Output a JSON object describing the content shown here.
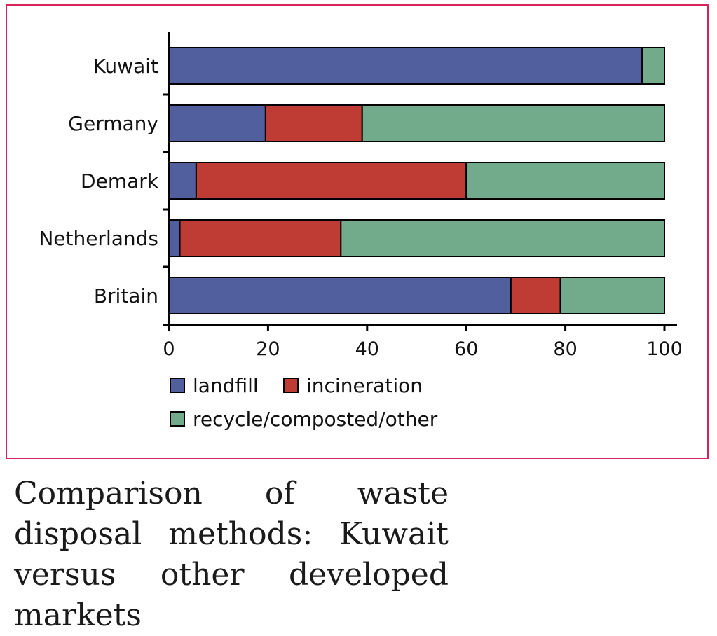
{
  "chart_data": {
    "type": "bar",
    "orientation": "horizontal",
    "stacked": true,
    "categories": [
      "Kuwait",
      "Germany",
      "Demark",
      "Netherlands",
      "Britain"
    ],
    "series": [
      {
        "name": "landfill",
        "color": "#525f9f",
        "values": [
          95.5,
          19.5,
          5.5,
          2.2,
          69
        ]
      },
      {
        "name": "incineration",
        "color": "#be3c34",
        "values": [
          0,
          19.5,
          54.5,
          32.5,
          10
        ]
      },
      {
        "name": "recycle/composted/other",
        "color": "#72ab8c",
        "values": [
          4.5,
          61,
          40,
          65.3,
          21
        ]
      }
    ],
    "xlim": [
      0,
      100
    ],
    "xticks": [
      "0",
      "20",
      "40",
      "60",
      "80",
      "100"
    ],
    "grid": false,
    "legend": "bottom"
  },
  "caption": "Comparison of waste disposal methods: Kuwait versus other developed markets"
}
